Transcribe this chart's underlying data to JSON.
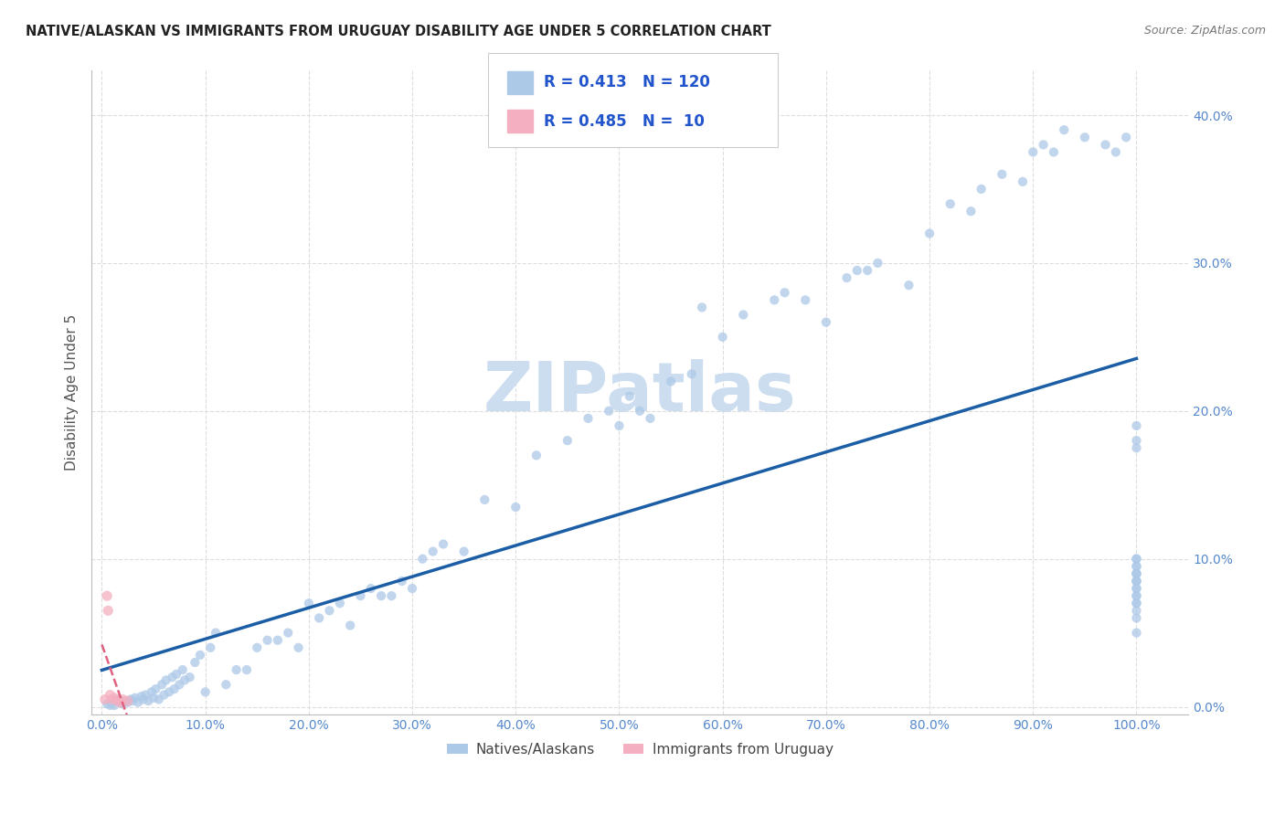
{
  "title": "NATIVE/ALASKAN VS IMMIGRANTS FROM URUGUAY DISABILITY AGE UNDER 5 CORRELATION CHART",
  "source": "Source: ZipAtlas.com",
  "ylabel": "Disability Age Under 5",
  "r_native": 0.413,
  "n_native": 120,
  "r_uruguay": 0.485,
  "n_uruguay": 10,
  "native_color": "#adc9e8",
  "uruguay_color": "#f4afc0",
  "trendline_native_color": "#1b5ea6",
  "trendline_uruguay_color": "#e06080",
  "watermark_color": "#ccddf0",
  "title_color": "#222222",
  "legend_text_color": "#2255cc",
  "axis_tick_color": "#5588cc",
  "ylabel_color": "#555555",
  "grid_color": "#dddddd",
  "native_dot_size": 55,
  "uruguay_dot_size": 65,
  "native_alpha": 0.75,
  "uruguay_alpha": 0.75,
  "native_x": [
    0.5,
    0.8,
    1.0,
    1.2,
    1.5,
    1.8,
    2.0,
    2.2,
    2.5,
    2.8,
    3.0,
    3.2,
    3.5,
    3.8,
    4.0,
    4.2,
    4.5,
    4.8,
    5.0,
    5.2,
    5.5,
    5.8,
    6.0,
    6.2,
    6.5,
    6.8,
    7.0,
    7.2,
    7.5,
    7.8,
    8.0,
    8.5,
    9.0,
    9.5,
    10.0,
    10.5,
    11.0,
    12.0,
    13.0,
    14.0,
    15.0,
    16.0,
    17.0,
    18.0,
    19.0,
    20.0,
    21.0,
    22.0,
    23.0,
    24.0,
    25.0,
    26.0,
    27.0,
    28.0,
    29.0,
    30.0,
    31.0,
    32.0,
    33.0,
    35.0,
    37.0,
    40.0,
    42.0,
    45.0,
    47.0,
    49.0,
    50.0,
    51.0,
    52.0,
    53.0,
    55.0,
    57.0,
    58.0,
    60.0,
    62.0,
    65.0,
    66.0,
    68.0,
    70.0,
    72.0,
    73.0,
    74.0,
    75.0,
    78.0,
    80.0,
    82.0,
    84.0,
    85.0,
    87.0,
    89.0,
    90.0,
    91.0,
    92.0,
    93.0,
    95.0,
    97.0,
    98.0,
    99.0,
    100.0,
    100.0,
    100.0,
    100.0,
    100.0,
    100.0,
    100.0,
    100.0,
    100.0,
    100.0,
    100.0,
    100.0,
    100.0,
    100.0,
    100.0,
    100.0,
    100.0,
    100.0,
    100.0,
    100.0,
    100.0,
    100.0
  ],
  "native_y": [
    0.2,
    0.1,
    0.3,
    0.1,
    0.5,
    0.3,
    0.2,
    0.4,
    0.3,
    0.5,
    0.4,
    0.6,
    0.3,
    0.7,
    0.5,
    0.8,
    0.4,
    1.0,
    0.6,
    1.2,
    0.5,
    1.5,
    0.8,
    1.8,
    1.0,
    2.0,
    1.2,
    2.2,
    1.5,
    2.5,
    1.8,
    2.0,
    3.0,
    3.5,
    1.0,
    4.0,
    5.0,
    1.5,
    2.5,
    2.5,
    4.0,
    4.5,
    4.5,
    5.0,
    4.0,
    7.0,
    6.0,
    6.5,
    7.0,
    5.5,
    7.5,
    8.0,
    7.5,
    7.5,
    8.5,
    8.0,
    10.0,
    10.5,
    11.0,
    10.5,
    14.0,
    13.5,
    17.0,
    18.0,
    19.5,
    20.0,
    19.0,
    21.0,
    20.0,
    19.5,
    22.0,
    22.5,
    27.0,
    25.0,
    26.5,
    27.5,
    28.0,
    27.5,
    26.0,
    29.0,
    29.5,
    29.5,
    30.0,
    28.5,
    32.0,
    34.0,
    33.5,
    35.0,
    36.0,
    35.5,
    37.5,
    38.0,
    37.5,
    39.0,
    38.5,
    38.0,
    37.5,
    38.5,
    5.0,
    7.0,
    8.0,
    9.0,
    9.5,
    10.0,
    8.5,
    9.5,
    10.0,
    7.5,
    9.0,
    17.5,
    18.0,
    19.0,
    8.5,
    9.0,
    6.0,
    7.5,
    8.0,
    6.5,
    7.0,
    8.5
  ],
  "uruguay_x": [
    0.3,
    0.5,
    0.6,
    0.8,
    1.0,
    1.2,
    1.5,
    1.8,
    2.0,
    2.5
  ],
  "uruguay_y": [
    0.5,
    7.5,
    6.5,
    0.8,
    0.5,
    0.6,
    0.4,
    0.3,
    0.5,
    0.4
  ]
}
